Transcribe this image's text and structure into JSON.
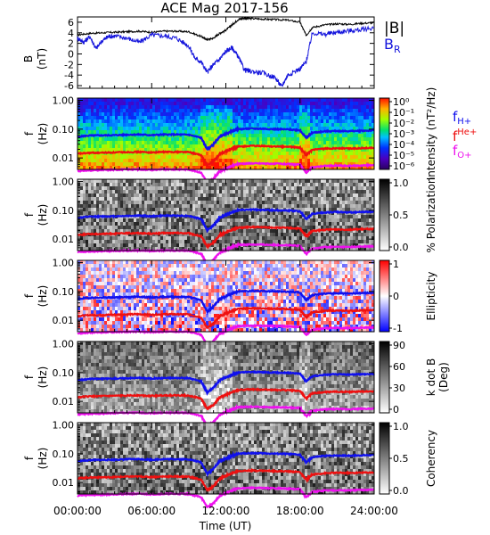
{
  "title": "ACE Mag 2017-156",
  "colors": {
    "B": "#000000",
    "BR": "#1414dc",
    "fH": "#1010ee",
    "fHe": "#ee1010",
    "fO": "#ee10ee",
    "axis": "#000000"
  },
  "x_axis": {
    "label": "Time (UT)",
    "ticks": [
      "00:00:00",
      "06:00:00",
      "12:00:00",
      "18:00:00",
      "24:00:00"
    ],
    "tick_hours": [
      0,
      6,
      12,
      18,
      24
    ],
    "range_hours": [
      0,
      24
    ]
  },
  "chart_data": [
    {
      "type": "line",
      "panel": "magnetic-field",
      "ylabel": "B",
      "yunit": "(nT)",
      "ylim": [
        -6.5,
        7
      ],
      "yticks": [
        "6",
        "4",
        "2",
        "0",
        "-2",
        "-4",
        "-6"
      ],
      "ytick_values": [
        6,
        4,
        2,
        0,
        -2,
        -4,
        -6
      ],
      "legend": [
        "|B|",
        "B_R"
      ],
      "series": [
        {
          "name": "|B|",
          "color": "#000000",
          "x_hours": [
            0,
            1,
            2,
            3,
            4,
            5,
            6,
            7,
            8,
            9,
            10,
            10.5,
            11,
            11.5,
            12,
            12.5,
            13,
            13.5,
            14,
            15,
            16,
            17,
            18,
            18.5,
            19,
            20,
            21,
            22,
            23,
            24
          ],
          "values": [
            3.6,
            3.9,
            4.0,
            4.1,
            4.2,
            4.3,
            4.1,
            4.3,
            4.3,
            4.2,
            3.3,
            2.7,
            3.0,
            3.9,
            4.5,
            5.5,
            6.5,
            6.8,
            6.7,
            6.6,
            6.5,
            6.4,
            6.0,
            3.5,
            5.0,
            5.5,
            5.7,
            5.6,
            5.8,
            5.9
          ]
        },
        {
          "name": "B_R",
          "color": "#1414dc",
          "x_hours": [
            0,
            0.5,
            1,
            1.5,
            2,
            2.5,
            3,
            4,
            5,
            6,
            7,
            8,
            9,
            9.5,
            10,
            10.5,
            11,
            11.5,
            12,
            12.5,
            13,
            13.5,
            14,
            15,
            16,
            16.5,
            17,
            18,
            18.5,
            19,
            20,
            21,
            22,
            23,
            24
          ],
          "values": [
            3.0,
            2.2,
            3.3,
            1.0,
            2.5,
            3.3,
            3.4,
            3.0,
            2.2,
            3.6,
            3.4,
            3.0,
            1.5,
            -0.8,
            -1.5,
            -3.5,
            -2.0,
            -1.0,
            0.5,
            1.2,
            -0.5,
            -3.0,
            -3.3,
            -3.6,
            -4.5,
            -6.2,
            -4.0,
            -2.8,
            -1.5,
            4.0,
            3.7,
            4.1,
            4.4,
            4.6,
            5.0
          ]
        }
      ]
    },
    {
      "type": "heatmap",
      "panel": "intensity",
      "ylabel": "f",
      "yunit": "(Hz)",
      "yscale": "log",
      "ylim": [
        0.004,
        1.2
      ],
      "yticks": [
        "1.00",
        "0.10",
        "0.01"
      ],
      "colorbar_label": "Intensity (nT²/Hz)",
      "colorbar_ticks": [
        "10⁰",
        "10⁻¹",
        "10⁻²",
        "10⁻³",
        "10⁻⁴",
        "10⁻⁵",
        "10⁻⁶"
      ],
      "colorscale": "rainbow",
      "legend": [
        "f_H+",
        "f_He+",
        "f_O+"
      ]
    },
    {
      "type": "heatmap",
      "panel": "polarization",
      "ylabel": "f",
      "yunit": "(Hz)",
      "yscale": "log",
      "ylim": [
        0.004,
        1.2
      ],
      "yticks": [
        "1.00",
        "0.10",
        "0.01"
      ],
      "colorbar_label": "% Polarization",
      "colorbar_ticks": [
        "1.0",
        "0.5",
        "0.0"
      ],
      "colorscale": "gray"
    },
    {
      "type": "heatmap",
      "panel": "ellipticity",
      "ylabel": "f",
      "yunit": "(Hz)",
      "yscale": "log",
      "ylim": [
        0.004,
        1.2
      ],
      "yticks": [
        "1.00",
        "0.10",
        "0.01"
      ],
      "colorbar_label": "Ellipticity",
      "colorbar_ticks": [
        "1",
        "0",
        "-1"
      ],
      "colorscale": "blue-white-red"
    },
    {
      "type": "heatmap",
      "panel": "k-dot-b",
      "ylabel": "f",
      "yunit": "(Hz)",
      "yscale": "log",
      "ylim": [
        0.004,
        1.2
      ],
      "yticks": [
        "1.00",
        "0.10",
        "0.01"
      ],
      "colorbar_label": "k dot B",
      "colorbar_unit": "(Deg)",
      "colorbar_ticks": [
        "90",
        "60",
        "30",
        "0"
      ],
      "colorscale": "gray"
    },
    {
      "type": "heatmap",
      "panel": "coherency",
      "ylabel": "f",
      "yunit": "(Hz)",
      "yscale": "log",
      "ylim": [
        0.004,
        1.2
      ],
      "yticks": [
        "1.00",
        "0.10",
        "0.01"
      ],
      "colorbar_label": "Coherency",
      "colorbar_ticks": [
        "1.0",
        "0.5",
        "0.0"
      ],
      "colorscale": "gray"
    }
  ],
  "gyrofrequency_lines": [
    {
      "name": "f_H+",
      "color": "#1010ee",
      "x_hours": [
        0,
        1,
        2,
        3,
        4,
        5,
        6,
        7,
        8,
        9,
        10,
        10.5,
        11,
        11.5,
        12,
        12.5,
        13,
        14,
        15,
        16,
        17,
        18,
        18.5,
        19,
        20,
        21,
        22,
        23,
        24
      ],
      "values_hz": [
        0.055,
        0.06,
        0.061,
        0.062,
        0.064,
        0.065,
        0.062,
        0.065,
        0.065,
        0.064,
        0.05,
        0.02,
        0.03,
        0.055,
        0.068,
        0.085,
        0.1,
        0.105,
        0.103,
        0.1,
        0.098,
        0.092,
        0.05,
        0.075,
        0.084,
        0.087,
        0.085,
        0.088,
        0.09
      ]
    },
    {
      "name": "f_He+",
      "color": "#ee1010",
      "x_hours": [
        0,
        1,
        2,
        3,
        4,
        5,
        6,
        7,
        8,
        9,
        10,
        10.5,
        11,
        11.5,
        12,
        12.5,
        13,
        14,
        15,
        16,
        17,
        18,
        18.5,
        19,
        20,
        21,
        22,
        23,
        24
      ],
      "values_hz": [
        0.014,
        0.015,
        0.0152,
        0.0155,
        0.016,
        0.0162,
        0.0155,
        0.0162,
        0.0162,
        0.016,
        0.0125,
        0.0055,
        0.0075,
        0.0138,
        0.017,
        0.021,
        0.025,
        0.026,
        0.0258,
        0.025,
        0.0245,
        0.023,
        0.0125,
        0.019,
        0.021,
        0.0218,
        0.0213,
        0.022,
        0.0225
      ]
    },
    {
      "name": "f_O+",
      "color": "#ee10ee",
      "x_hours": [
        0,
        1,
        2,
        3,
        4,
        5,
        6,
        7,
        8,
        9,
        10,
        10.5,
        11,
        11.5,
        12,
        12.5,
        13,
        14,
        15,
        16,
        17,
        18,
        18.5,
        19,
        20,
        21,
        22,
        23,
        24
      ],
      "values_hz": [
        0.0035,
        0.0037,
        0.0038,
        0.0039,
        0.004,
        0.004,
        0.0039,
        0.004,
        0.004,
        0.004,
        0.0031,
        0.0014,
        0.0019,
        0.0034,
        0.0042,
        0.0053,
        0.0063,
        0.0065,
        0.0064,
        0.0063,
        0.0061,
        0.0058,
        0.0031,
        0.0047,
        0.0053,
        0.0054,
        0.0053,
        0.0055,
        0.0056
      ]
    }
  ],
  "legend_labels": {
    "B": "|B|",
    "BR_main": "B",
    "BR_sub": "R",
    "fH_main": "f",
    "fH_sub": "H+",
    "fHe_main": "f",
    "fHe_sub": "He+",
    "fO_main": "f",
    "fO_sub": "O+"
  }
}
